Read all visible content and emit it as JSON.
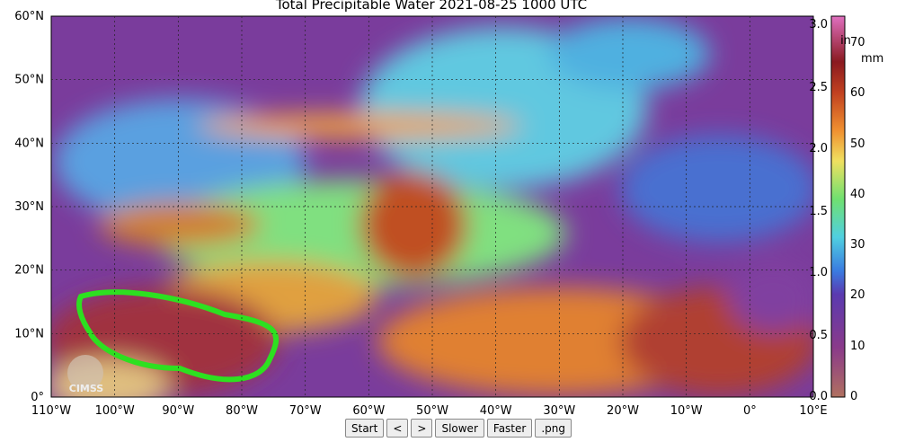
{
  "header": {
    "title": "Total Precipitable Water  2021-08-25 1000 UTC"
  },
  "map": {
    "lat_labels": [
      "60°N",
      "50°N",
      "40°N",
      "30°N",
      "20°N",
      "10°N",
      "0°"
    ],
    "lon_labels": [
      "110°W",
      "100°W",
      "90°W",
      "80°W",
      "70°W",
      "60°W",
      "50°W",
      "40°W",
      "30°W",
      "20°W",
      "10°W",
      "0°",
      "10°E"
    ],
    "logo": "CIMSS"
  },
  "colorbar": {
    "in_unit": "in",
    "mm_unit": "mm",
    "in_labels": [
      "3.0",
      "2.5",
      "2.0",
      "1.5",
      "1.0",
      "0.5",
      "0.0"
    ],
    "mm_labels": [
      "70",
      "60",
      "50",
      "40",
      "30",
      "20",
      "10",
      "0"
    ]
  },
  "controls": {
    "buttons": [
      "Start",
      "<",
      ">",
      "Slower",
      "Faster",
      ".png"
    ]
  }
}
